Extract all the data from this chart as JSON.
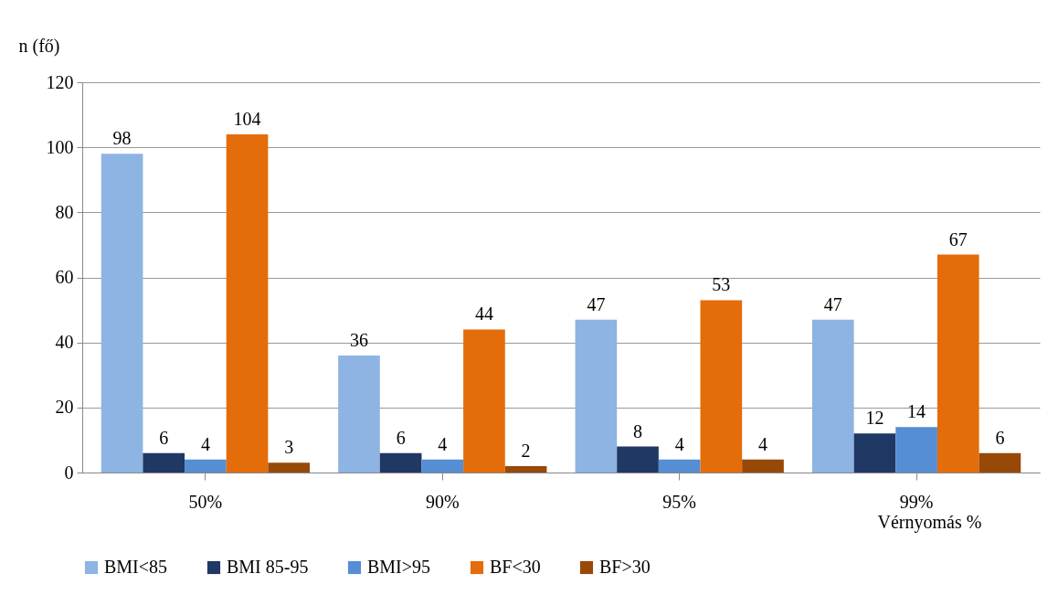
{
  "chart_data": {
    "type": "bar",
    "xlabel": "Vérnyomás %",
    "ylabel": "n (fő)",
    "categories": [
      "50%",
      "90%",
      "95%",
      "99%"
    ],
    "series": [
      {
        "name": "BMI<85",
        "color": "#8db4e2",
        "values": [
          98,
          36,
          47,
          47
        ]
      },
      {
        "name": "BMI 85-95",
        "color": "#1f3864",
        "values": [
          6,
          6,
          8,
          12
        ]
      },
      {
        "name": "BMI>95",
        "color": "#558ed5",
        "values": [
          4,
          4,
          4,
          14
        ]
      },
      {
        "name": "BF<30",
        "color": "#e46c0a",
        "values": [
          104,
          44,
          53,
          67
        ]
      },
      {
        "name": "BF>30",
        "color": "#984807",
        "values": [
          3,
          2,
          4,
          6
        ]
      }
    ],
    "ylim": [
      0,
      120
    ],
    "yticks": [
      0,
      20,
      40,
      60,
      80,
      100,
      120
    ],
    "grid": "y",
    "legend": "bottom",
    "data_labels": true
  }
}
